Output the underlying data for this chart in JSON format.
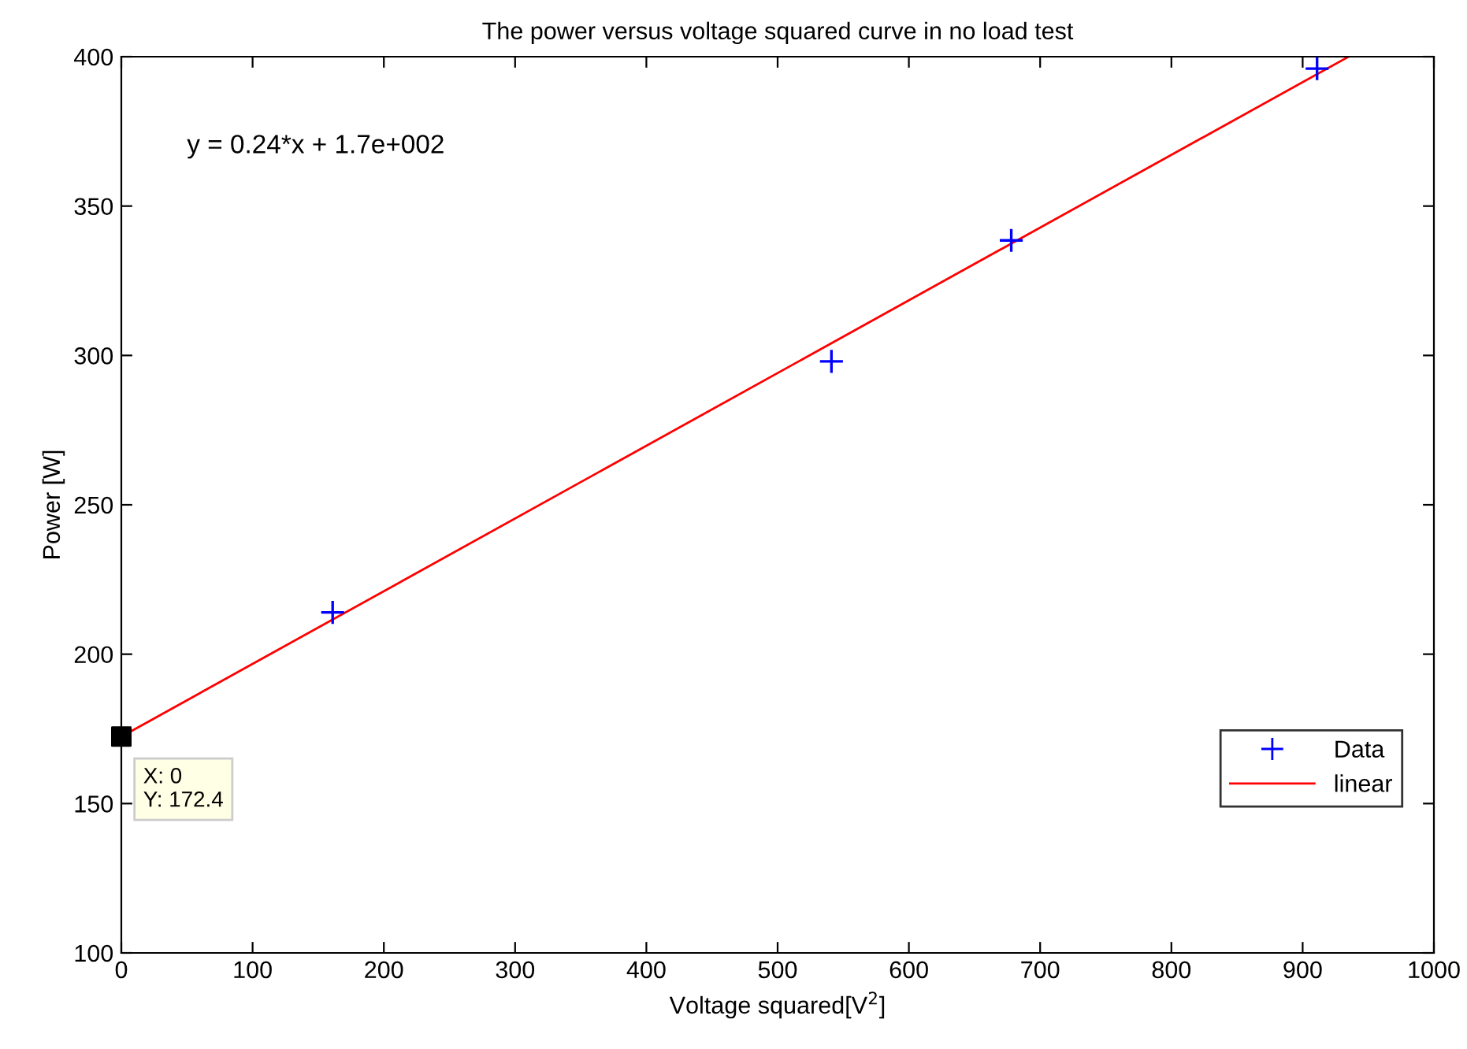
{
  "chart_data": {
    "type": "scatter",
    "title": "The power versus voltage squared curve in no load test",
    "xlabel": "Voltage squared[V$^{2}$]",
    "ylabel": "Power [W]",
    "xlim": [
      0,
      1000
    ],
    "xticks": [
      0,
      100,
      200,
      300,
      400,
      500,
      600,
      700,
      800,
      900,
      1000
    ],
    "ylim": [
      100,
      400
    ],
    "yticks": [
      100,
      150,
      200,
      250,
      300,
      350,
      400
    ],
    "grid": false,
    "legend": "bottom right",
    "series": [
      {
        "name": "Data",
        "marker": "cross",
        "color": "#0000ff",
        "x": [
          161,
          541,
          678,
          911
        ],
        "values": [
          214,
          298,
          338.5,
          396
        ]
      },
      {
        "name": "linear",
        "type": "line",
        "line_style": "solid",
        "color": "#ff0000",
        "x": [
          0,
          935
        ],
        "values": [
          172.4,
          400
        ]
      }
    ],
    "annotations": [
      "y = 0.24*x + 1.7e+002",
      {
        "text": "X: 0\nY: 172.4",
        "x": 0,
        "y": 172.4
      }
    ]
  }
}
